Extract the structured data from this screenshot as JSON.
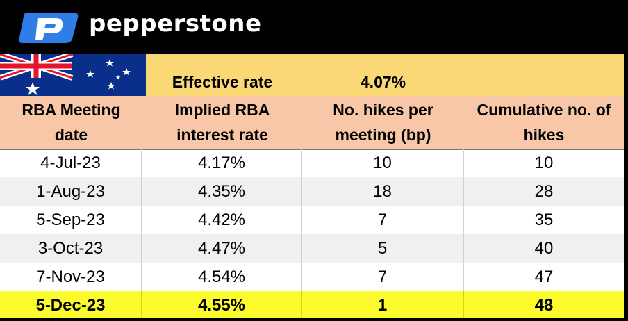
{
  "brand": {
    "name": "pepperstone",
    "logo_icon": "pepperstone-p-logo",
    "accent": "#2f7ee8"
  },
  "effective": {
    "label": "Effective rate",
    "value": "4.07%"
  },
  "flag_icon": "australian-flag",
  "columns": [
    "RBA Meeting date",
    "Implied RBA interest rate",
    "No. hikes per meeting (bp)",
    "Cumulative no. of hikes"
  ],
  "column_lines": [
    [
      "RBA Meeting",
      "date"
    ],
    [
      "Implied RBA",
      "interest rate"
    ],
    [
      "No. hikes per",
      "meeting (bp)"
    ],
    [
      "Cumulative no. of",
      "hikes"
    ]
  ],
  "rows": [
    {
      "date": "4-Jul-23",
      "rate": "4.17%",
      "hikes": "10",
      "cumulative": "10"
    },
    {
      "date": "1-Aug-23",
      "rate": "4.35%",
      "hikes": "18",
      "cumulative": "28"
    },
    {
      "date": "5-Sep-23",
      "rate": "4.42%",
      "hikes": "7",
      "cumulative": "35"
    },
    {
      "date": "3-Oct-23",
      "rate": "4.47%",
      "hikes": "5",
      "cumulative": "40"
    },
    {
      "date": "7-Nov-23",
      "rate": "4.54%",
      "hikes": "7",
      "cumulative": "47"
    },
    {
      "date": "5-Dec-23",
      "rate": "4.55%",
      "hikes": "1",
      "cumulative": "48"
    }
  ],
  "colors": {
    "effective_band": "#fbd876",
    "header_band": "#f7c7a7",
    "highlight_row": "#fbfb2e"
  }
}
